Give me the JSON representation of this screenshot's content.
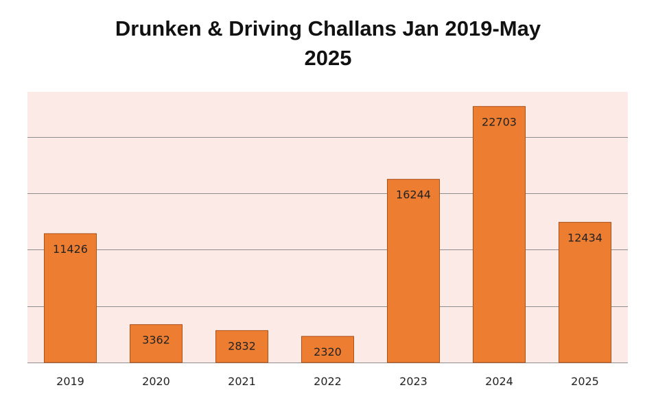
{
  "chart_data": {
    "type": "bar",
    "title_lines": [
      "Drunken & Driving Challans Jan 2019-May",
      "2025"
    ],
    "categories": [
      "2019",
      "2020",
      "2021",
      "2022",
      "2023",
      "2024",
      "2025"
    ],
    "values": [
      11426,
      3362,
      2832,
      2320,
      16244,
      22703,
      12434
    ],
    "data_labels": [
      "11426",
      "3362",
      "2832",
      "2320",
      "16244",
      "22703",
      "12434"
    ],
    "ylim": [
      0,
      24000
    ],
    "y_gridlines": [
      0,
      5000,
      10000,
      15000,
      20000
    ],
    "y_tick_labels_shown": false,
    "grid": true,
    "legend": "none",
    "colors": {
      "bar_fill": "#ED7D31",
      "bar_stroke": "#A9501B",
      "plot_background": "#FBEAE6",
      "gridline": "#8C8C8C"
    }
  }
}
